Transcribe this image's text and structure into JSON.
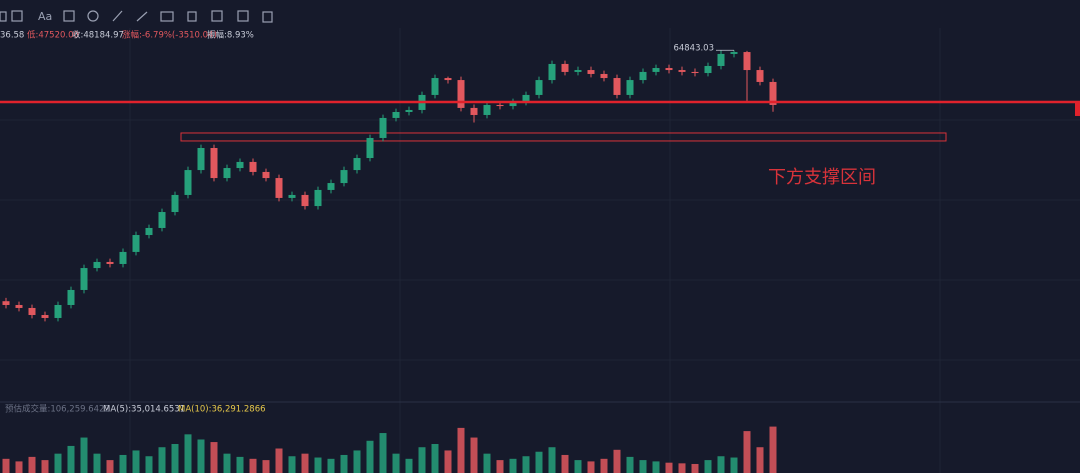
{
  "toolbar": {
    "text_tool": "Aa"
  },
  "chart_data": {
    "type": "candlestick",
    "info": [
      "36.58",
      "低:47520.00",
      "收:48184.97",
      "涨幅:-6.79%(-3510.04)",
      "振幅:8.93%"
    ],
    "open": [
      46300,
      46020,
      45800,
      45280,
      45060,
      46020,
      47130,
      48750,
      49200,
      49050,
      49940,
      51190,
      51710,
      52890,
      54150,
      55990,
      57620,
      55400,
      56140,
      56590,
      55850,
      55400,
      53930,
      54150,
      53330,
      54520,
      55030,
      55990,
      56880,
      58360,
      59840,
      60280,
      60430,
      61540,
      62790,
      62640,
      60580,
      60060,
      60800,
      60720,
      61020,
      61540,
      62640,
      63830,
      63240,
      63380,
      63090,
      62790,
      61540,
      62640,
      63240,
      63530,
      63380,
      63240,
      63160,
      63680,
      64570,
      64710,
      63380,
      62500
    ],
    "high": [
      46550,
      46270,
      46050,
      45530,
      46270,
      47380,
      49000,
      49450,
      49450,
      50190,
      51440,
      51960,
      53140,
      54400,
      56240,
      57870,
      57870,
      56390,
      56840,
      56840,
      56100,
      55650,
      54400,
      54400,
      54770,
      55280,
      56240,
      57130,
      58610,
      60090,
      60530,
      60680,
      61790,
      63040,
      62890,
      62890,
      60830,
      61050,
      61050,
      61270,
      61790,
      62890,
      64080,
      64080,
      63630,
      63630,
      63340,
      63040,
      62890,
      63490,
      63780,
      63780,
      63630,
      63490,
      63930,
      64820,
      64843.03,
      64800,
      63630,
      62750
    ],
    "low": [
      45770,
      45550,
      45030,
      44810,
      44810,
      45770,
      46880,
      48500,
      48800,
      48800,
      49690,
      50940,
      51460,
      52640,
      53900,
      55740,
      55150,
      55150,
      55890,
      55600,
      55150,
      53680,
      53680,
      53080,
      53080,
      54270,
      54780,
      55740,
      56630,
      58110,
      59590,
      60030,
      60180,
      61290,
      62390,
      60330,
      59500,
      59810,
      60470,
      60470,
      60770,
      61290,
      62390,
      62990,
      62990,
      62840,
      62540,
      61290,
      61290,
      62390,
      62990,
      63130,
      62990,
      62910,
      62910,
      63430,
      64320,
      61000,
      62250,
      60300
    ],
    "close": [
      46020,
      45800,
      45280,
      45060,
      46020,
      47130,
      48750,
      49200,
      49050,
      49940,
      51190,
      51710,
      52890,
      54150,
      55990,
      57620,
      55400,
      56140,
      56590,
      55850,
      55400,
      53930,
      54150,
      53330,
      54520,
      55030,
      55990,
      56880,
      58360,
      59840,
      60280,
      60430,
      61540,
      62790,
      62640,
      60580,
      60060,
      60800,
      60720,
      61020,
      61540,
      62640,
      63830,
      63240,
      63380,
      63090,
      62790,
      61540,
      62640,
      63240,
      63530,
      63380,
      63240,
      63160,
      63680,
      64570,
      64710,
      63380,
      62500,
      60800
    ],
    "up_color": "#26a17b",
    "down_color": "#e2585e",
    "ylim": [
      39000,
      65600
    ],
    "level_line": {
      "value": 61020,
      "color": "#e0222c"
    },
    "support_zone": {
      "label": "下方支撑区间",
      "low": 58140,
      "high": 58730,
      "color": "#d8333a"
    },
    "volume": {
      "info": [
        "预估成交量:106,259.6422",
        "MA(5):35,014.6531",
        "MA(10):36,291.2866"
      ],
      "values": [
        22000,
        18000,
        25000,
        20000,
        30000,
        42000,
        55000,
        30000,
        20000,
        28000,
        35000,
        26000,
        40000,
        45000,
        60000,
        52000,
        48000,
        30000,
        25000,
        22000,
        20000,
        38000,
        26000,
        30000,
        24000,
        22000,
        28000,
        35000,
        50000,
        62000,
        30000,
        22000,
        40000,
        45000,
        35000,
        70000,
        55000,
        30000,
        20000,
        22000,
        26000,
        33000,
        40000,
        28000,
        20000,
        18000,
        22000,
        36000,
        25000,
        20000,
        18000,
        16000,
        15000,
        14000,
        20000,
        26000,
        24000,
        65000,
        40000,
        72000
      ],
      "ylim": [
        0,
        90000
      ]
    }
  }
}
